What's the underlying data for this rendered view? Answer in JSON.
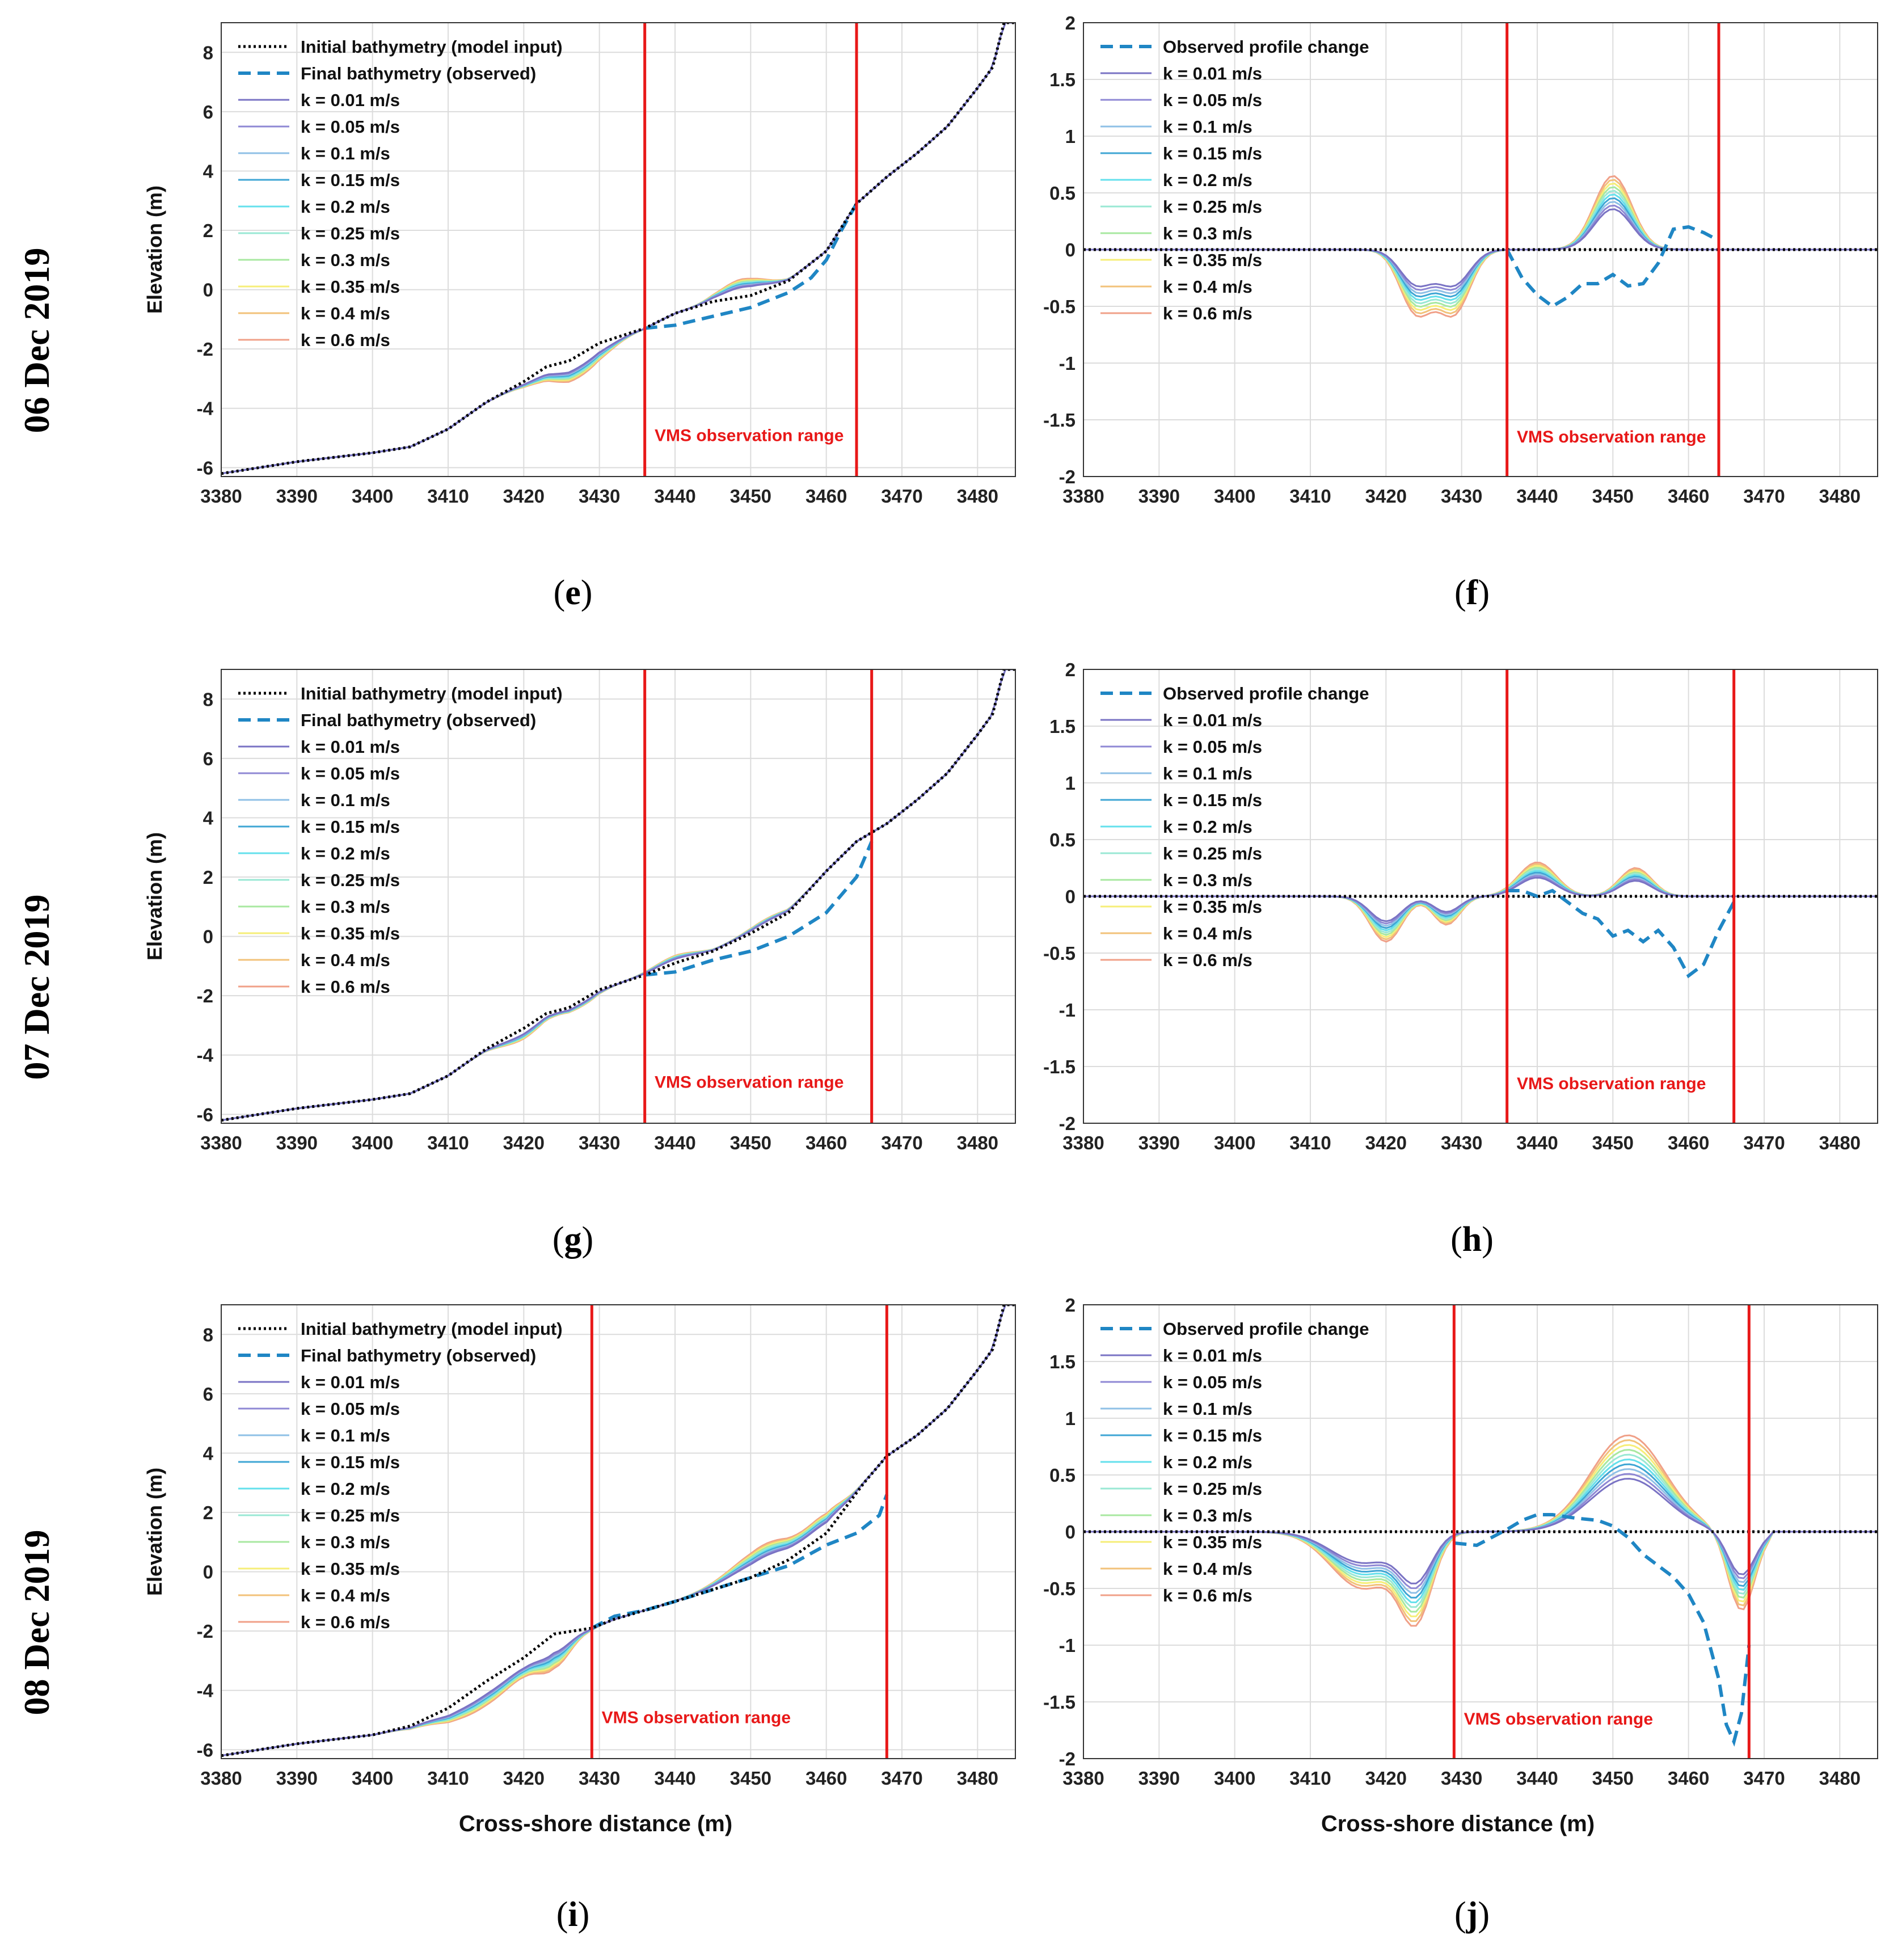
{
  "row_labels": [
    "06 Dec 2019",
    "07 Dec 2019",
    "08 Dec 2019"
  ],
  "panel_labels": [
    "e",
    "f",
    "g",
    "h",
    "i",
    "j"
  ],
  "colors": {
    "initial": "#000000",
    "observed": "#1f86c4",
    "vms": "#e81818",
    "grid": "#dcdcdc",
    "k_colors": [
      "#7a73c4",
      "#8f88d4",
      "#8fc0e6",
      "#3fa6d4",
      "#64e0ec",
      "#9ae8d4",
      "#a8e8a0",
      "#f6ee78",
      "#f2c27a",
      "#f0a088"
    ]
  },
  "chart_data": [
    {
      "type": "line",
      "panel": "e",
      "row": 0,
      "col": 0,
      "kind": "elevation",
      "title": "",
      "xlabel": "",
      "ylabel": "Elevation (m)",
      "xlim": [
        3380,
        3485
      ],
      "ylim": [
        -6.3,
        9
      ],
      "xticks": [
        3380,
        3390,
        3400,
        3410,
        3420,
        3430,
        3440,
        3450,
        3460,
        3470,
        3480
      ],
      "yticks": [
        -6,
        -4,
        -2,
        0,
        2,
        4,
        6,
        8
      ],
      "vms": [
        3436,
        3464
      ],
      "vms_label": "VMS observation range",
      "vms_label_x": 3437,
      "vms_label_y": -5.1,
      "legend": [
        "Initial bathymetry (model input)",
        "Final bathymetry (observed)",
        "k = 0.01 m/s",
        "k = 0.05 m/s",
        "k = 0.1 m/s",
        "k = 0.15 m/s",
        "k = 0.2 m/s",
        "k = 0.25 m/s",
        "k = 0.3 m/s",
        "k = 0.35 m/s",
        "k = 0.4 m/s",
        "k = 0.6 m/s"
      ],
      "k_values": [
        0.01,
        0.05,
        0.1,
        0.15,
        0.2,
        0.25,
        0.3,
        0.35,
        0.4,
        0.6
      ],
      "initial": {
        "x": [
          3380,
          3390,
          3400,
          3405,
          3410,
          3415,
          3420,
          3423,
          3426,
          3430,
          3436,
          3440,
          3445,
          3450,
          3455,
          3460,
          3464,
          3468,
          3472,
          3476,
          3480,
          3482,
          3483.5,
          3485
        ],
        "y": [
          -6.2,
          -5.8,
          -5.5,
          -5.3,
          -4.7,
          -3.8,
          -3.1,
          -2.6,
          -2.4,
          -1.8,
          -1.3,
          -0.8,
          -0.4,
          -0.2,
          0.3,
          1.3,
          2.9,
          3.8,
          4.6,
          5.5,
          6.8,
          7.5,
          9.0,
          9.0
        ]
      },
      "observed": {
        "x": [
          3436,
          3440,
          3445,
          3450,
          3455,
          3458,
          3460,
          3462,
          3464
        ],
        "y": [
          -1.3,
          -1.2,
          -0.9,
          -0.6,
          -0.1,
          0.4,
          1.0,
          2.0,
          2.9
        ]
      },
      "k_spec": {
        "x0": 3410,
        "x1": 3464,
        "dips": [
          {
            "c": 3425,
            "a": -0.5,
            "w": 5
          },
          {
            "c": 3429,
            "a": -0.4,
            "w": 4
          }
        ],
        "bumps": [
          {
            "c": 3449,
            "a": 0.6,
            "w": 4
          }
        ]
      }
    },
    {
      "type": "line",
      "panel": "f",
      "row": 0,
      "col": 1,
      "kind": "change",
      "title": "",
      "xlabel": "",
      "ylabel": "",
      "xlim": [
        3380,
        3485
      ],
      "ylim": [
        -2,
        2
      ],
      "xticks": [
        3380,
        3390,
        3400,
        3410,
        3420,
        3430,
        3440,
        3450,
        3460,
        3470,
        3480
      ],
      "yticks": [
        -2,
        -1.5,
        -1,
        -0.5,
        0,
        0.5,
        1,
        1.5,
        2
      ],
      "vms": [
        3436,
        3464
      ],
      "vms_label": "VMS observation range",
      "vms_label_x": 3437,
      "vms_label_y": -1.7,
      "legend": [
        "Observed profile change",
        "k = 0.01 m/s",
        "k = 0.05 m/s",
        "k = 0.1 m/s",
        "k = 0.15 m/s",
        "k = 0.2 m/s",
        "k = 0.25 m/s",
        "k = 0.3 m/s",
        "k = 0.35 m/s",
        "k = 0.4 m/s",
        "k = 0.6 m/s"
      ],
      "k_values": [
        0.01,
        0.05,
        0.1,
        0.15,
        0.2,
        0.25,
        0.3,
        0.35,
        0.4,
        0.6
      ],
      "observed": {
        "x": [
          3436,
          3438,
          3440,
          3442,
          3444,
          3446,
          3448,
          3450,
          3452,
          3454,
          3456,
          3458,
          3460,
          3462,
          3464
        ],
        "y": [
          0,
          -0.25,
          -0.4,
          -0.5,
          -0.42,
          -0.3,
          -0.3,
          -0.22,
          -0.32,
          -0.3,
          -0.12,
          0.18,
          0.2,
          0.15,
          0.08
        ]
      },
      "k_spec": {
        "x0": 3410,
        "x1": 3460,
        "dips": [
          {
            "c": 3424,
            "a": -0.55,
            "w": 3
          },
          {
            "c": 3429,
            "a": -0.55,
            "w": 3
          }
        ],
        "bumps": [
          {
            "c": 3450,
            "a": 0.65,
            "w": 3.5
          }
        ]
      }
    },
    {
      "type": "line",
      "panel": "g",
      "row": 1,
      "col": 0,
      "kind": "elevation",
      "title": "",
      "xlabel": "",
      "ylabel": "Elevation (m)",
      "xlim": [
        3380,
        3485
      ],
      "ylim": [
        -6.3,
        9
      ],
      "xticks": [
        3380,
        3390,
        3400,
        3410,
        3420,
        3430,
        3440,
        3450,
        3460,
        3470,
        3480
      ],
      "yticks": [
        -6,
        -4,
        -2,
        0,
        2,
        4,
        6,
        8
      ],
      "vms": [
        3436,
        3466
      ],
      "vms_label": "VMS observation range",
      "vms_label_x": 3437,
      "vms_label_y": -5.1,
      "legend": [
        "Initial bathymetry (model input)",
        "Final bathymetry (observed)",
        "k = 0.01 m/s",
        "k = 0.05 m/s",
        "k = 0.1 m/s",
        "k = 0.15 m/s",
        "k = 0.2 m/s",
        "k = 0.25 m/s",
        "k = 0.3 m/s",
        "k = 0.35 m/s",
        "k = 0.4 m/s",
        "k = 0.6 m/s"
      ],
      "k_values": [
        0.01,
        0.05,
        0.1,
        0.15,
        0.2,
        0.25,
        0.3,
        0.35,
        0.4,
        0.6
      ],
      "initial": {
        "x": [
          3380,
          3390,
          3400,
          3405,
          3410,
          3415,
          3420,
          3423,
          3426,
          3430,
          3436,
          3440,
          3445,
          3450,
          3455,
          3460,
          3464,
          3468,
          3472,
          3476,
          3480,
          3482,
          3483.5,
          3485
        ],
        "y": [
          -6.2,
          -5.8,
          -5.5,
          -5.3,
          -4.7,
          -3.8,
          -3.1,
          -2.6,
          -2.4,
          -1.8,
          -1.3,
          -0.9,
          -0.5,
          0.1,
          0.8,
          2.2,
          3.2,
          3.8,
          4.6,
          5.5,
          6.8,
          7.5,
          9.0,
          9.0
        ]
      },
      "observed": {
        "x": [
          3436,
          3440,
          3445,
          3450,
          3455,
          3460,
          3464,
          3466
        ],
        "y": [
          -1.3,
          -1.2,
          -0.8,
          -0.5,
          0.0,
          0.8,
          2.0,
          3.2
        ]
      },
      "k_spec": {
        "x0": 3410,
        "x1": 3462,
        "dips": [
          {
            "c": 3420,
            "a": -0.35,
            "w": 4
          },
          {
            "c": 3428,
            "a": -0.2,
            "w": 3
          }
        ],
        "bumps": [
          {
            "c": 3440,
            "a": 0.25,
            "w": 4
          },
          {
            "c": 3452,
            "a": 0.2,
            "w": 4
          }
        ]
      }
    },
    {
      "type": "line",
      "panel": "h",
      "row": 1,
      "col": 1,
      "kind": "change",
      "title": "",
      "xlabel": "",
      "ylabel": "",
      "xlim": [
        3380,
        3485
      ],
      "ylim": [
        -2,
        2
      ],
      "xticks": [
        3380,
        3390,
        3400,
        3410,
        3420,
        3430,
        3440,
        3450,
        3460,
        3470,
        3480
      ],
      "yticks": [
        -2,
        -1.5,
        -1,
        -0.5,
        0,
        0.5,
        1,
        1.5,
        2
      ],
      "vms": [
        3436,
        3466
      ],
      "vms_label": "VMS observation range",
      "vms_label_x": 3437,
      "vms_label_y": -1.7,
      "legend": [
        "Observed profile change",
        "k = 0.01 m/s",
        "k = 0.05 m/s",
        "k = 0.1 m/s",
        "k = 0.15 m/s",
        "k = 0.2 m/s",
        "k = 0.25 m/s",
        "k = 0.3 m/s",
        "k = 0.35 m/s",
        "k = 0.4 m/s",
        "k = 0.6 m/s"
      ],
      "k_values": [
        0.01,
        0.05,
        0.1,
        0.15,
        0.2,
        0.25,
        0.3,
        0.35,
        0.4,
        0.6
      ],
      "observed": {
        "x": [
          3436,
          3438,
          3440,
          3442,
          3444,
          3446,
          3448,
          3450,
          3452,
          3454,
          3456,
          3458,
          3460,
          3462,
          3464,
          3466
        ],
        "y": [
          0.05,
          0.05,
          0.0,
          0.05,
          -0.05,
          -0.15,
          -0.2,
          -0.35,
          -0.3,
          -0.4,
          -0.3,
          -0.45,
          -0.7,
          -0.6,
          -0.3,
          -0.05
        ]
      },
      "k_spec": {
        "x0": 3410,
        "x1": 3460,
        "dips": [
          {
            "c": 3420,
            "a": -0.4,
            "w": 3
          },
          {
            "c": 3428,
            "a": -0.25,
            "w": 2.5
          }
        ],
        "bumps": [
          {
            "c": 3440,
            "a": 0.3,
            "w": 3.5
          },
          {
            "c": 3453,
            "a": 0.25,
            "w": 3
          }
        ]
      }
    },
    {
      "type": "line",
      "panel": "i",
      "row": 2,
      "col": 0,
      "kind": "elevation",
      "title": "",
      "xlabel": "Cross-shore distance (m)",
      "ylabel": "Elevation (m)",
      "xlim": [
        3380,
        3485
      ],
      "ylim": [
        -6.3,
        9
      ],
      "xticks": [
        3380,
        3390,
        3400,
        3410,
        3420,
        3430,
        3440,
        3450,
        3460,
        3470,
        3480
      ],
      "yticks": [
        -6,
        -4,
        -2,
        0,
        2,
        4,
        6,
        8
      ],
      "vms": [
        3429,
        3468
      ],
      "vms_label": "VMS observation range",
      "vms_label_x": 3430,
      "vms_label_y": -5.1,
      "legend": [
        "Initial bathymetry (model input)",
        "Final bathymetry (observed)",
        "k = 0.01 m/s",
        "k = 0.05 m/s",
        "k = 0.1 m/s",
        "k = 0.15 m/s",
        "k = 0.2 m/s",
        "k = 0.25 m/s",
        "k = 0.3 m/s",
        "k = 0.35 m/s",
        "k = 0.4 m/s",
        "k = 0.6 m/s"
      ],
      "k_values": [
        0.01,
        0.05,
        0.1,
        0.15,
        0.2,
        0.25,
        0.3,
        0.35,
        0.4,
        0.6
      ],
      "initial": {
        "x": [
          3380,
          3390,
          3400,
          3405,
          3410,
          3415,
          3420,
          3424,
          3429,
          3432,
          3436,
          3440,
          3445,
          3450,
          3455,
          3460,
          3465,
          3468,
          3472,
          3476,
          3480,
          3482,
          3483.5,
          3485
        ],
        "y": [
          -6.2,
          -5.8,
          -5.5,
          -5.2,
          -4.6,
          -3.7,
          -2.9,
          -2.1,
          -1.9,
          -1.6,
          -1.3,
          -1.0,
          -0.6,
          -0.2,
          0.4,
          1.3,
          3.0,
          3.9,
          4.6,
          5.5,
          6.8,
          7.5,
          9.0,
          9.0
        ]
      },
      "observed": {
        "x": [
          3429,
          3432,
          3436,
          3440,
          3445,
          3450,
          3455,
          3460,
          3464,
          3467,
          3468
        ],
        "y": [
          -1.9,
          -1.5,
          -1.3,
          -1.0,
          -0.6,
          -0.2,
          0.2,
          0.9,
          1.3,
          1.9,
          2.6
        ]
      },
      "k_spec": {
        "x0": 3385,
        "x1": 3471,
        "dips": [
          {
            "c": 3415,
            "a": -0.8,
            "w": 7
          },
          {
            "c": 3424,
            "a": -1.0,
            "w": 3
          }
        ],
        "bumps": [
          {
            "c": 3452,
            "a": 0.9,
            "w": 6
          },
          {
            "c": 3460,
            "a": 0.5,
            "w": 3
          }
        ]
      }
    },
    {
      "type": "line",
      "panel": "j",
      "row": 2,
      "col": 1,
      "kind": "change",
      "title": "",
      "xlabel": "Cross-shore distance (m)",
      "ylabel": "",
      "xlim": [
        3380,
        3485
      ],
      "ylim": [
        -2,
        2
      ],
      "xticks": [
        3380,
        3390,
        3400,
        3410,
        3420,
        3430,
        3440,
        3450,
        3460,
        3470,
        3480
      ],
      "yticks": [
        -2,
        -1.5,
        -1,
        -0.5,
        0,
        0.5,
        1,
        1.5,
        2
      ],
      "vms": [
        3429,
        3468
      ],
      "vms_label": "VMS observation range",
      "vms_label_x": 3430,
      "vms_label_y": -1.7,
      "legend": [
        "Observed profile change",
        "k = 0.01 m/s",
        "k = 0.05 m/s",
        "k = 0.1 m/s",
        "k = 0.15 m/s",
        "k = 0.2 m/s",
        "k = 0.25 m/s",
        "k = 0.3 m/s",
        "k = 0.35 m/s",
        "k = 0.4 m/s",
        "k = 0.6 m/s"
      ],
      "k_values": [
        0.01,
        0.05,
        0.1,
        0.15,
        0.2,
        0.25,
        0.3,
        0.35,
        0.4,
        0.6
      ],
      "observed": {
        "x": [
          3429,
          3432,
          3434,
          3436,
          3438,
          3440,
          3442,
          3445,
          3448,
          3450,
          3452,
          3454,
          3456,
          3458,
          3460,
          3462,
          3464,
          3465,
          3466,
          3467,
          3468
        ],
        "y": [
          -0.1,
          -0.12,
          -0.05,
          0.02,
          0.1,
          0.15,
          0.15,
          0.12,
          0.1,
          0.05,
          -0.05,
          -0.2,
          -0.3,
          -0.4,
          -0.55,
          -0.8,
          -1.3,
          -1.7,
          -1.85,
          -1.6,
          -1.0
        ]
      },
      "k_spec": {
        "x0": 3385,
        "x1": 3471,
        "dips": [
          {
            "c": 3424,
            "a": -0.7,
            "w": 3
          },
          {
            "c": 3417,
            "a": -0.5,
            "w": 6
          },
          {
            "c": 3467,
            "a": -0.7,
            "w": 2.5
          }
        ],
        "bumps": [
          {
            "c": 3452,
            "a": 0.85,
            "w": 7
          }
        ]
      }
    }
  ]
}
